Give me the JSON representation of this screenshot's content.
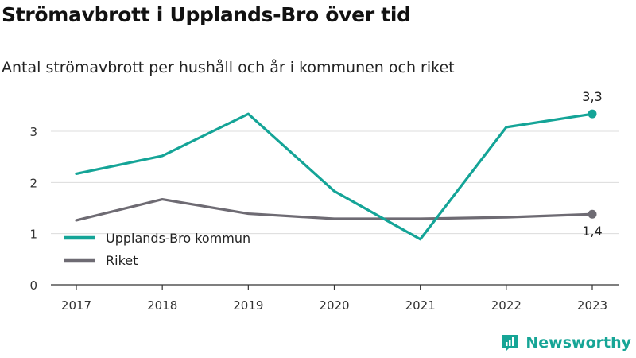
{
  "header": {
    "title": "Strömavbrott i Upplands-Bro över tid",
    "subtitle": "Antal strömavbrott per hushåll och år i kommunen och riket"
  },
  "brand": {
    "name": "Newsworthy",
    "icon": "newsworthy-logo-icon",
    "color": "#16a596"
  },
  "chart_data": {
    "type": "line",
    "title": "Strömavbrott i Upplands-Bro över tid",
    "subtitle": "Antal strömavbrott per hushåll och år i kommunen och riket",
    "x": [
      "2017",
      "2018",
      "2019",
      "2020",
      "2021",
      "2022",
      "2023"
    ],
    "series": [
      {
        "name": "Upplands-Bro kommun",
        "color": "#14a497",
        "values": [
          2.17,
          2.52,
          3.34,
          1.83,
          0.89,
          3.08,
          3.34
        ],
        "end_label": "3,3"
      },
      {
        "name": "Riket",
        "color": "#6e6b73",
        "values": [
          1.26,
          1.67,
          1.39,
          1.29,
          1.29,
          1.32,
          1.38
        ],
        "end_label": "1,4"
      }
    ],
    "ylim": [
      0,
      3.7
    ],
    "yticks": [
      "0",
      "1",
      "2",
      "3"
    ],
    "grid": true,
    "legend": "bottom-left",
    "xlabel": "",
    "ylabel": ""
  }
}
